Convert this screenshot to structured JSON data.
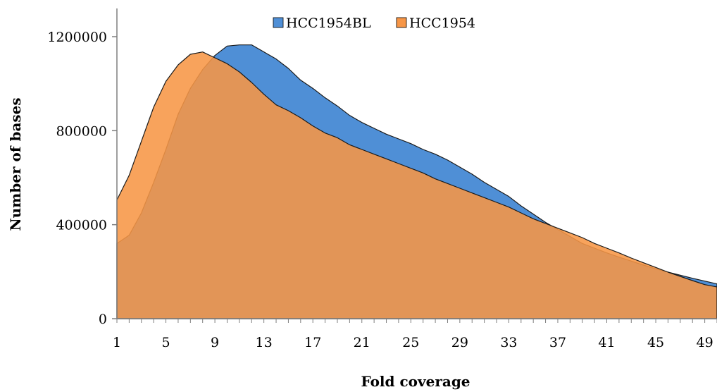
{
  "chart_data": {
    "type": "area",
    "title": "",
    "xlabel": "Fold coverage",
    "ylabel": "Number of bases",
    "xlim": [
      1,
      50
    ],
    "ylim": [
      0,
      1200000
    ],
    "x_ticks": [
      1,
      5,
      9,
      13,
      17,
      21,
      25,
      29,
      33,
      37,
      41,
      45,
      49
    ],
    "y_ticks": [
      0,
      400000,
      800000,
      1200000
    ],
    "legend_position": "top",
    "x": [
      1,
      2,
      3,
      4,
      5,
      6,
      7,
      8,
      9,
      10,
      11,
      12,
      13,
      14,
      15,
      16,
      17,
      18,
      19,
      20,
      21,
      22,
      23,
      24,
      25,
      26,
      27,
      28,
      29,
      30,
      31,
      32,
      33,
      34,
      35,
      36,
      37,
      38,
      39,
      40,
      41,
      42,
      43,
      44,
      45,
      46,
      47,
      48,
      49,
      50
    ],
    "series": [
      {
        "name": "HCC1954BL",
        "color": "#4F8FD6",
        "values": [
          320000,
          355000,
          450000,
          580000,
          720000,
          870000,
          980000,
          1060000,
          1120000,
          1160000,
          1165000,
          1165000,
          1135000,
          1105000,
          1065000,
          1015000,
          980000,
          940000,
          905000,
          865000,
          835000,
          810000,
          785000,
          765000,
          745000,
          720000,
          700000,
          675000,
          645000,
          615000,
          580000,
          550000,
          520000,
          480000,
          445000,
          410000,
          380000,
          350000,
          320000,
          300000,
          280000,
          262000,
          245000,
          228000,
          212000,
          198000,
          185000,
          172000,
          160000,
          148000
        ]
      },
      {
        "name": "HCC1954",
        "color": "#F79646",
        "values": [
          505000,
          610000,
          755000,
          900000,
          1010000,
          1080000,
          1125000,
          1135000,
          1110000,
          1085000,
          1050000,
          1005000,
          955000,
          910000,
          885000,
          855000,
          820000,
          790000,
          770000,
          740000,
          720000,
          700000,
          680000,
          660000,
          640000,
          620000,
          595000,
          575000,
          555000,
          535000,
          515000,
          495000,
          475000,
          450000,
          425000,
          405000,
          385000,
          365000,
          345000,
          320000,
          300000,
          280000,
          258000,
          238000,
          218000,
          198000,
          180000,
          162000,
          145000,
          135000
        ]
      }
    ]
  }
}
